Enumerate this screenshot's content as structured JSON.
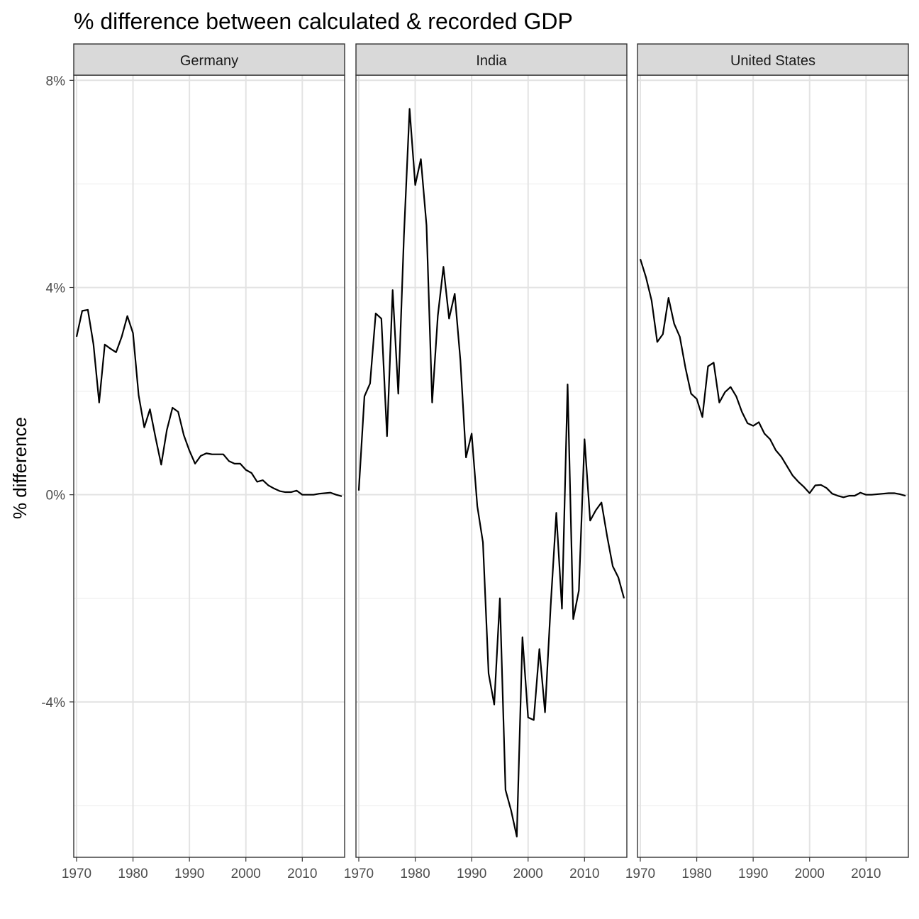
{
  "chart_data": {
    "type": "line",
    "title": "% difference between calculated & recorded GDP",
    "xlabel": "",
    "ylabel": "% difference",
    "xlim": [
      1969.5,
      2017.5
    ],
    "ylim": [
      -7,
      8.1
    ],
    "x_ticks": [
      1970,
      1980,
      1990,
      2000,
      2010
    ],
    "y_ticks": [
      {
        "value": -4,
        "label": "-4%"
      },
      {
        "value": 0,
        "label": "0%"
      },
      {
        "value": 4,
        "label": "4%"
      },
      {
        "value": 8,
        "label": "8%"
      }
    ],
    "y_minor": [
      -6,
      -2,
      2,
      6
    ],
    "grid": true,
    "line_color": "#000000",
    "panels": [
      {
        "label": "Germany",
        "x": [
          1970,
          1971,
          1972,
          1973,
          1974,
          1975,
          1976,
          1977,
          1978,
          1979,
          1980,
          1981,
          1982,
          1983,
          1984,
          1985,
          1986,
          1987,
          1988,
          1989,
          1990,
          1991,
          1992,
          1993,
          1994,
          1995,
          1996,
          1997,
          1998,
          1999,
          2000,
          2001,
          2002,
          2003,
          2004,
          2005,
          2006,
          2007,
          2008,
          2009,
          2010,
          2011,
          2012,
          2013,
          2014,
          2015,
          2016,
          2017
        ],
        "values": [
          3.05,
          3.55,
          3.57,
          2.9,
          1.78,
          2.9,
          2.82,
          2.75,
          3.05,
          3.45,
          3.12,
          1.92,
          1.3,
          1.65,
          1.1,
          0.58,
          1.25,
          1.68,
          1.6,
          1.15,
          0.85,
          0.6,
          0.75,
          0.8,
          0.78,
          0.78,
          0.78,
          0.65,
          0.6,
          0.6,
          0.48,
          0.42,
          0.25,
          0.28,
          0.18,
          0.12,
          0.07,
          0.05,
          0.05,
          0.08,
          0.0,
          0.0,
          0.0,
          0.02,
          0.03,
          0.04,
          0.0,
          -0.03
        ]
      },
      {
        "label": "India",
        "x": [
          1970,
          1971,
          1972,
          1973,
          1974,
          1975,
          1976,
          1977,
          1978,
          1979,
          1980,
          1981,
          1982,
          1983,
          1984,
          1985,
          1986,
          1987,
          1988,
          1989,
          1990,
          1991,
          1992,
          1993,
          1994,
          1995,
          1996,
          1997,
          1998,
          1999,
          2000,
          2001,
          2002,
          2003,
          2004,
          2005,
          2006,
          2007,
          2008,
          2009,
          2010,
          2011,
          2012,
          2013,
          2014,
          2015,
          2016,
          2017
        ],
        "values": [
          0.08,
          1.9,
          2.15,
          3.5,
          3.4,
          1.13,
          3.95,
          1.95,
          5.0,
          7.45,
          5.98,
          6.48,
          5.2,
          1.78,
          3.45,
          4.4,
          3.4,
          3.88,
          2.6,
          0.72,
          1.18,
          -0.22,
          -0.92,
          -3.45,
          -4.05,
          -2.0,
          -5.7,
          -6.1,
          -6.6,
          -2.75,
          -4.3,
          -4.35,
          -2.98,
          -4.2,
          -2.15,
          -0.35,
          -2.2,
          2.13,
          -2.4,
          -1.85,
          1.07,
          -0.5,
          -0.3,
          -0.15,
          -0.8,
          -1.38,
          -1.6,
          -2.0
        ]
      },
      {
        "label": "United States",
        "x": [
          1970,
          1971,
          1972,
          1973,
          1974,
          1975,
          1976,
          1977,
          1978,
          1979,
          1980,
          1981,
          1982,
          1983,
          1984,
          1985,
          1986,
          1987,
          1988,
          1989,
          1990,
          1991,
          1992,
          1993,
          1994,
          1995,
          1996,
          1997,
          1998,
          1999,
          2000,
          2001,
          2002,
          2003,
          2004,
          2005,
          2006,
          2007,
          2008,
          2009,
          2010,
          2011,
          2012,
          2013,
          2014,
          2015,
          2016,
          2017
        ],
        "values": [
          4.55,
          4.2,
          3.75,
          2.95,
          3.1,
          3.8,
          3.3,
          3.05,
          2.45,
          1.95,
          1.85,
          1.5,
          2.48,
          2.55,
          1.78,
          1.98,
          2.08,
          1.9,
          1.6,
          1.38,
          1.33,
          1.4,
          1.18,
          1.07,
          0.86,
          0.73,
          0.55,
          0.37,
          0.25,
          0.15,
          0.03,
          0.18,
          0.19,
          0.13,
          0.02,
          -0.02,
          -0.05,
          -0.02,
          -0.02,
          0.04,
          0.0,
          0.0,
          0.01,
          0.02,
          0.03,
          0.03,
          0.01,
          -0.02
        ]
      }
    ]
  }
}
